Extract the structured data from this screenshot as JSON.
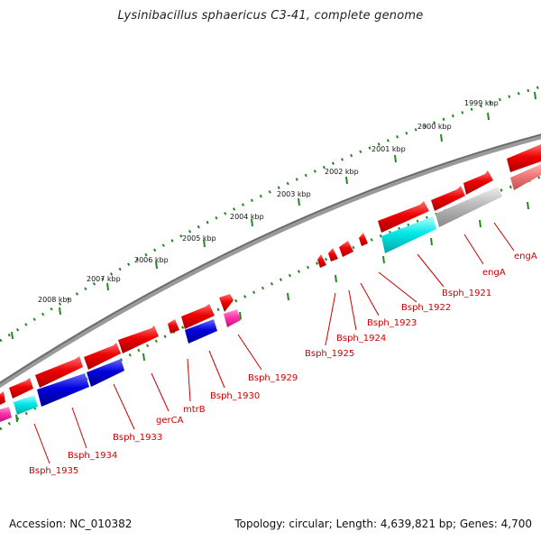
{
  "title": "Lysinibacillus sphaericus C3-41, complete genome",
  "footer": {
    "accession": "Accession: NC_010382",
    "summary": "Topology: circular; Length: 4,639,821 bp; Genes: 4,700"
  },
  "scale_ticks": [
    "1999 kbp",
    "2000 kbp",
    "2001 kbp",
    "2002 kbp",
    "2003 kbp",
    "2004 kbp",
    "2005 kbp",
    "2006 kbp",
    "2007 kbp",
    "2008 kbp"
  ],
  "gene_labels": [
    "engA",
    "engA",
    "Bsph_1921",
    "Bsph_1922",
    "Bsph_1923",
    "Bsph_1924",
    "Bsph_1925",
    "Bsph_1929",
    "Bsph_1930",
    "mtrB",
    "gerCA",
    "Bsph_1933",
    "Bsph_1934",
    "Bsph_1935"
  ],
  "colors": {
    "forward_cds": "#ee0000",
    "reverse_cds": "#0000dd",
    "rna": "#00e0e0",
    "pseudo": "#ff33aa",
    "other": "#bbbbbb",
    "backbone": "#888888",
    "label": "#cc0000",
    "tick": "#228822"
  }
}
